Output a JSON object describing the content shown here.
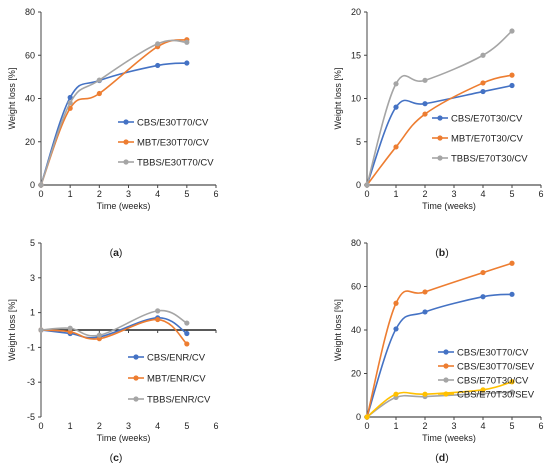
{
  "chart_data": [
    {
      "panel": "(a)",
      "panel_letter": "a",
      "type": "line",
      "xlabel": "Time (weeks)",
      "ylabel": "Weight loss [%]",
      "xlim": [
        0,
        6
      ],
      "ylim": [
        0,
        80
      ],
      "xticks": [
        0,
        1,
        2,
        3,
        4,
        5,
        6
      ],
      "yticks": [
        0,
        20,
        40,
        60,
        80
      ],
      "legend_position": "center-right",
      "grid": false,
      "series": [
        {
          "name": "CBS/E30T70/CV",
          "color": "#4472C4",
          "x": [
            0,
            1,
            2,
            4,
            5
          ],
          "y": [
            0,
            40.5,
            48.3,
            55.3,
            56.4
          ]
        },
        {
          "name": "MBT/E30T70/CV",
          "color": "#ED7D31",
          "x": [
            0,
            1,
            2,
            4,
            5
          ],
          "y": [
            0,
            35.5,
            42.3,
            64.0,
            67.2
          ]
        },
        {
          "name": "TBBS/E30T70/CV",
          "color": "#A5A5A5",
          "x": [
            0,
            1,
            2,
            4,
            5
          ],
          "y": [
            0,
            38.0,
            48.5,
            65.3,
            66.0
          ]
        }
      ]
    },
    {
      "panel": "(b)",
      "panel_letter": "b",
      "type": "line",
      "xlabel": "Time (weeks)",
      "ylabel": "Weight loss [%]",
      "xlim": [
        0,
        6
      ],
      "ylim": [
        0,
        20
      ],
      "xticks": [
        0,
        1,
        2,
        3,
        4,
        5,
        6
      ],
      "yticks": [
        0,
        5,
        10,
        15,
        20
      ],
      "legend_position": "center-right",
      "grid": false,
      "series": [
        {
          "name": "CBS/E70T30/CV",
          "color": "#4472C4",
          "x": [
            0,
            1,
            2,
            4,
            5
          ],
          "y": [
            0,
            9.0,
            9.4,
            10.8,
            11.5
          ]
        },
        {
          "name": "MBT/E70T30/CV",
          "color": "#ED7D31",
          "x": [
            0,
            1,
            2,
            4,
            5
          ],
          "y": [
            0,
            4.4,
            8.2,
            11.8,
            12.7
          ]
        },
        {
          "name": "TBBS/E70T30/CV",
          "color": "#A5A5A5",
          "x": [
            0,
            1,
            2,
            4,
            5
          ],
          "y": [
            0,
            11.7,
            12.1,
            15.0,
            17.8
          ]
        }
      ]
    },
    {
      "panel": "(c)",
      "panel_letter": "c",
      "type": "line",
      "xlabel": "Time (weeks)",
      "ylabel": "Weight loss [%]",
      "xlim": [
        0,
        6
      ],
      "ylim": [
        -5,
        5
      ],
      "xticks": [
        0,
        1,
        2,
        3,
        4,
        5,
        6
      ],
      "yticks": [
        -5,
        -3,
        -1,
        1,
        3,
        5
      ],
      "zero_line": true,
      "legend_position": "lower-right",
      "grid": false,
      "series": [
        {
          "name": "CBS/ENR/CV",
          "color": "#4472C4",
          "x": [
            0,
            1,
            2,
            4,
            5
          ],
          "y": [
            0,
            -0.2,
            -0.4,
            0.7,
            -0.2
          ]
        },
        {
          "name": "MBT/ENR/CV",
          "color": "#ED7D31",
          "x": [
            0,
            1,
            2,
            4,
            5
          ],
          "y": [
            0,
            -0.1,
            -0.5,
            0.6,
            -0.8
          ]
        },
        {
          "name": "TBBS/ENR/CV",
          "color": "#A5A5A5",
          "x": [
            0,
            1,
            2,
            4,
            5
          ],
          "y": [
            0,
            0.1,
            -0.3,
            1.1,
            0.4
          ]
        }
      ]
    },
    {
      "panel": "(d)",
      "panel_letter": "d",
      "type": "line",
      "xlabel": "Time (weeks)",
      "ylabel": "Weight loss [%]",
      "xlim": [
        0,
        6
      ],
      "ylim": [
        0,
        80
      ],
      "xticks": [
        0,
        1,
        2,
        3,
        4,
        5,
        6
      ],
      "yticks": [
        0,
        20,
        40,
        60,
        80
      ],
      "legend_position": "lower-right",
      "grid": false,
      "series": [
        {
          "name": "CBS/E30T70/CV",
          "color": "#4472C4",
          "x": [
            0,
            1,
            2,
            4,
            5
          ],
          "y": [
            0,
            40.5,
            48.3,
            55.3,
            56.4
          ]
        },
        {
          "name": "CBS/E30T70/SEV",
          "color": "#ED7D31",
          "x": [
            0,
            1,
            2,
            4,
            5
          ],
          "y": [
            0,
            52.3,
            57.5,
            66.4,
            70.7
          ]
        },
        {
          "name": "CBS/E70T30/CV",
          "color": "#A5A5A5",
          "x": [
            0,
            1,
            2,
            4,
            5
          ],
          "y": [
            0,
            9.0,
            9.4,
            10.8,
            11.5
          ]
        },
        {
          "name": "CBS/E70T30/SEV",
          "color": "#FFC000",
          "x": [
            0,
            1,
            2,
            4,
            5
          ],
          "y": [
            0,
            10.5,
            10.5,
            12.5,
            16.2
          ]
        }
      ]
    }
  ]
}
